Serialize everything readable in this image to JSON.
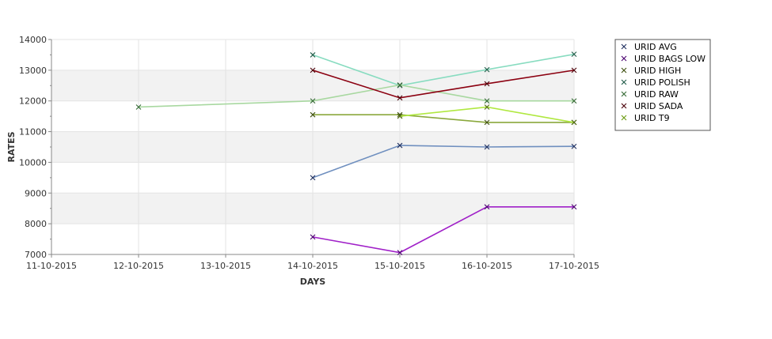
{
  "chart_data": {
    "type": "line",
    "title": "",
    "xlabel": "DAYS",
    "ylabel": "RATES",
    "x": [
      "11-10-2015",
      "12-10-2015",
      "13-10-2015",
      "14-10-2015",
      "15-10-2015",
      "16-10-2015",
      "17-10-2015"
    ],
    "ylim": [
      7000,
      14000
    ],
    "yticks": [
      7000,
      8000,
      9000,
      10000,
      11000,
      12000,
      13000,
      14000
    ],
    "grid": true,
    "legend_position": "right",
    "series": [
      {
        "name": "URID AVG",
        "color": "#6f8fbf",
        "marker_color": "#1f2f5f",
        "points": [
          [
            "14-10-2015",
            9500
          ],
          [
            "15-10-2015",
            10550
          ],
          [
            "16-10-2015",
            10500
          ],
          [
            "17-10-2015",
            10520
          ]
        ]
      },
      {
        "name": "URID BAGS LOW",
        "color": "#a020c8",
        "marker_color": "#4a0070",
        "points": [
          [
            "14-10-2015",
            7570
          ],
          [
            "15-10-2015",
            7060
          ],
          [
            "16-10-2015",
            8550
          ],
          [
            "17-10-2015",
            8550
          ]
        ]
      },
      {
        "name": "URID HIGH",
        "color": "#8aa83c",
        "marker_color": "#3f5010",
        "points": [
          [
            "14-10-2015",
            11550
          ],
          [
            "15-10-2015",
            11550
          ],
          [
            "16-10-2015",
            11300
          ],
          [
            "17-10-2015",
            11300
          ]
        ]
      },
      {
        "name": "URID POLISH",
        "color": "#88dcc0",
        "marker_color": "#205c48",
        "points": [
          [
            "14-10-2015",
            13500
          ],
          [
            "15-10-2015",
            12500
          ],
          [
            "16-10-2015",
            13020
          ],
          [
            "17-10-2015",
            13520
          ]
        ]
      },
      {
        "name": "URID RAW",
        "color": "#a8d8a0",
        "marker_color": "#356a35",
        "points": [
          [
            "12-10-2015",
            11800
          ],
          [
            "14-10-2015",
            12000
          ],
          [
            "15-10-2015",
            12520
          ],
          [
            "16-10-2015",
            12000
          ],
          [
            "17-10-2015",
            12000
          ]
        ]
      },
      {
        "name": "URID SADA",
        "color": "#8b0010",
        "marker_color": "#4a0008",
        "points": [
          [
            "14-10-2015",
            13000
          ],
          [
            "15-10-2015",
            12100
          ],
          [
            "16-10-2015",
            12560
          ],
          [
            "17-10-2015",
            13000
          ]
        ]
      },
      {
        "name": "URID T9",
        "color": "#b0e840",
        "marker_color": "#4f6a10",
        "points": [
          [
            "15-10-2015",
            11500
          ],
          [
            "16-10-2015",
            11800
          ],
          [
            "17-10-2015",
            11300
          ]
        ]
      }
    ]
  }
}
